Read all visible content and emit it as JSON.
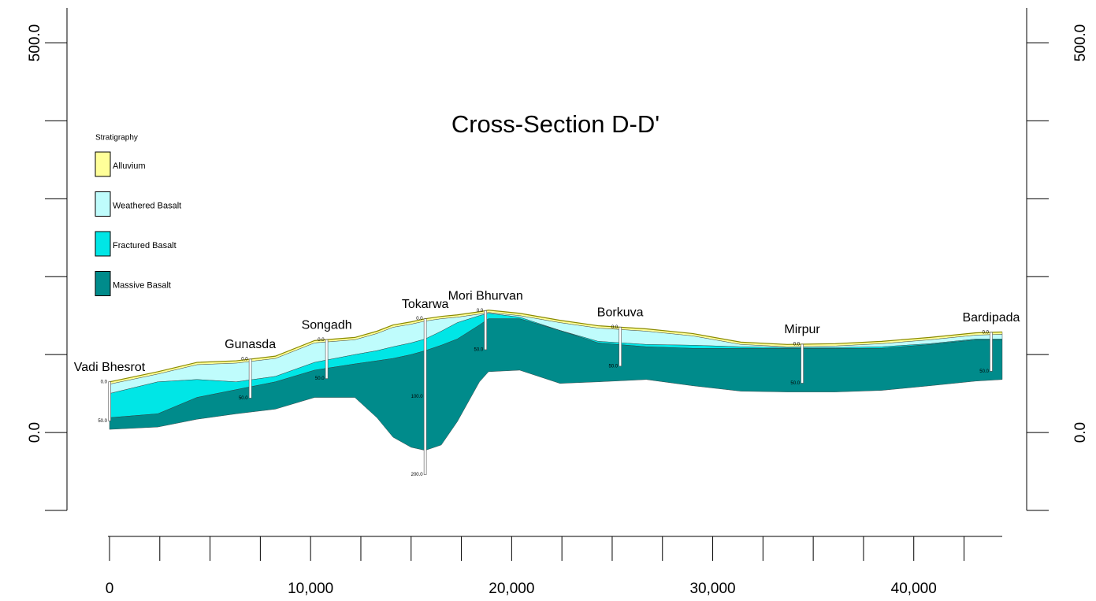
{
  "chart_data": {
    "type": "cross-section",
    "title": "Cross-Section D-D'",
    "legend_title": "Stratigraphy",
    "x": [
      0,
      2400,
      4350,
      6300,
      8250,
      10200,
      12200,
      13300,
      14100,
      15000,
      15700,
      16500,
      17300,
      18400,
      18850,
      20400,
      22400,
      24300,
      26700,
      29000,
      31400,
      33700,
      36100,
      38400,
      40800,
      43100,
      44400
    ],
    "surface": [
      65,
      78,
      90,
      92,
      98,
      118,
      122,
      130,
      138,
      142,
      146,
      149,
      151,
      155,
      157,
      153,
      144,
      137,
      133,
      127,
      116,
      113,
      114,
      117,
      122,
      128,
      129
    ],
    "surface_color": "#8a8a00",
    "series": [
      {
        "name": "Alluvium",
        "color": "#ffff99",
        "values": [
          62,
          75,
          87,
          89,
          95,
          115,
          119,
          127,
          135,
          139,
          143,
          146,
          148,
          152,
          154,
          150,
          141,
          134,
          130,
          124,
          113,
          110,
          111,
          114,
          119,
          125,
          126
        ]
      },
      {
        "name": "Weathered Basalt",
        "color": "#bffcfc",
        "values": [
          50,
          65,
          68,
          65,
          72,
          90,
          100,
          105,
          110,
          115,
          120,
          130,
          141,
          150,
          153,
          148,
          131,
          117,
          113,
          112,
          110,
          109,
          109,
          110,
          114,
          120,
          120
        ]
      },
      {
        "name": "Fractured Basalt",
        "color": "#00e6e6",
        "values": [
          19,
          24,
          45,
          55,
          65,
          80,
          88,
          92,
          95,
          100,
          105,
          112,
          120,
          138,
          146,
          146,
          131,
          115,
          110,
          108,
          108,
          108,
          108,
          108,
          113,
          119,
          119
        ]
      },
      {
        "name": "Massive Basalt",
        "color": "#008b8b",
        "values": [
          4,
          7,
          17,
          24,
          30,
          45,
          45,
          19,
          -6,
          -19,
          -23,
          -16,
          14,
          65,
          78,
          80,
          63,
          65,
          68,
          60,
          53,
          52,
          52,
          54,
          60,
          66,
          68
        ]
      }
    ],
    "boreholes": [
      {
        "name": "Vadi Bhesrot",
        "x": 0,
        "depth_labels": [
          {
            "value": 0,
            "label": "0.0"
          },
          {
            "value": 50,
            "label": "50.0"
          }
        ]
      },
      {
        "name": "Gunasda",
        "x": 7000,
        "depth_labels": [
          {
            "value": 0,
            "label": "0.0"
          },
          {
            "value": 50,
            "label": "50.0"
          }
        ]
      },
      {
        "name": "Songadh",
        "x": 10800,
        "depth_labels": [
          {
            "value": 0,
            "label": "0.0"
          },
          {
            "value": 50,
            "label": "50.0"
          }
        ]
      },
      {
        "name": "Tokarwa",
        "x": 15700,
        "depth_labels": [
          {
            "value": 0,
            "label": "0.0"
          },
          {
            "value": 100,
            "label": "100.0"
          },
          {
            "value": 200,
            "label": "200.0"
          }
        ]
      },
      {
        "name": "Mori Bhurvan",
        "x": 18700,
        "depth_labels": [
          {
            "value": 0,
            "label": "0.0"
          },
          {
            "value": 50,
            "label": "50.0"
          }
        ]
      },
      {
        "name": "Borkuva",
        "x": 25400,
        "depth_labels": [
          {
            "value": 0,
            "label": "0.0"
          },
          {
            "value": 50,
            "label": "50.0"
          }
        ]
      },
      {
        "name": "Mirpur",
        "x": 34450,
        "depth_labels": [
          {
            "value": 0,
            "label": "0.0"
          },
          {
            "value": 50,
            "label": "50.0"
          }
        ]
      },
      {
        "name": "Bardipada",
        "x": 43850,
        "depth_labels": [
          {
            "value": 0,
            "label": "0.0"
          },
          {
            "value": 50,
            "label": "50.0"
          }
        ]
      }
    ],
    "xlim": [
      0,
      44400
    ],
    "xticks": [
      0,
      {
        "value": 10000,
        "label": "10,000"
      },
      {
        "value": 20000,
        "label": "20,000"
      },
      {
        "value": 30000,
        "label": "30,000"
      },
      {
        "value": 40000,
        "label": "40,000"
      }
    ],
    "xminorticks": [
      2500,
      5000,
      7500,
      12500,
      15000,
      17500,
      22500,
      25000,
      27500,
      32500,
      35000,
      37500,
      42500
    ],
    "ylim": [
      -100,
      545
    ],
    "yticks": [
      {
        "value": 0,
        "label": "0.0"
      },
      {
        "value": 500,
        "label": "500.0"
      }
    ],
    "yminorticks": [
      -100,
      100,
      200,
      300,
      400
    ]
  }
}
